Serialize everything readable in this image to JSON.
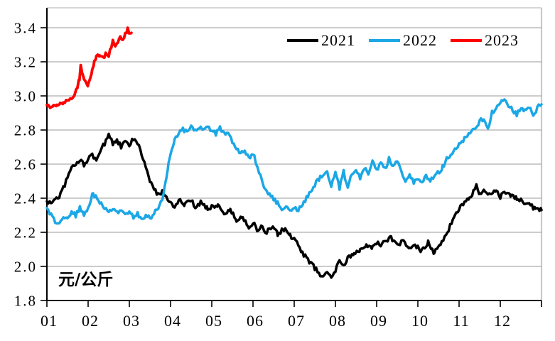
{
  "chart_data": {
    "type": "line",
    "title": "",
    "unit_label": "元/公斤",
    "xlabel": "",
    "ylabel": "元/公斤",
    "x_tick_labels": [
      "01",
      "02",
      "03",
      "04",
      "05",
      "06",
      "07",
      "08",
      "09",
      "10",
      "11",
      "12"
    ],
    "y_ticks": [
      1.8,
      2.0,
      2.2,
      2.4,
      2.6,
      2.8,
      3.0,
      3.2,
      3.4
    ],
    "ylim": [
      1.8,
      3.52
    ],
    "x_months_range": [
      1,
      13
    ],
    "grid": "horizontal",
    "legend_position": "top-right",
    "colors": {
      "axis": "#000000",
      "gridline": "#9a9a9a",
      "plot_border": "#c9c9c9",
      "series_2021": "#000000",
      "series_2022": "#1ba7e6",
      "series_2023": "#fe0000"
    },
    "series": [
      {
        "name": "2021",
        "color": "#000000",
        "width": 3.5,
        "noise": 0.013,
        "points": [
          [
            1.0,
            2.38
          ],
          [
            1.1,
            2.37
          ],
          [
            1.2,
            2.4
          ],
          [
            1.3,
            2.41
          ],
          [
            1.4,
            2.46
          ],
          [
            1.5,
            2.52
          ],
          [
            1.6,
            2.58
          ],
          [
            1.7,
            2.6
          ],
          [
            1.8,
            2.62
          ],
          [
            1.9,
            2.6
          ],
          [
            2.0,
            2.63
          ],
          [
            2.1,
            2.65
          ],
          [
            2.2,
            2.63
          ],
          [
            2.3,
            2.68
          ],
          [
            2.4,
            2.72
          ],
          [
            2.5,
            2.78
          ],
          [
            2.6,
            2.72
          ],
          [
            2.7,
            2.74
          ],
          [
            2.8,
            2.7
          ],
          [
            2.9,
            2.73
          ],
          [
            3.0,
            2.71
          ],
          [
            3.1,
            2.75
          ],
          [
            3.2,
            2.72
          ],
          [
            3.3,
            2.66
          ],
          [
            3.4,
            2.58
          ],
          [
            3.5,
            2.5
          ],
          [
            3.6,
            2.45
          ],
          [
            3.7,
            2.42
          ],
          [
            3.8,
            2.44
          ],
          [
            3.9,
            2.4
          ],
          [
            4.0,
            2.38
          ],
          [
            4.1,
            2.35
          ],
          [
            4.2,
            2.39
          ],
          [
            4.35,
            2.36
          ],
          [
            4.5,
            2.39
          ],
          [
            4.6,
            2.34
          ],
          [
            4.75,
            2.38
          ],
          [
            4.9,
            2.34
          ],
          [
            5.0,
            2.35
          ],
          [
            5.15,
            2.36
          ],
          [
            5.3,
            2.31
          ],
          [
            5.45,
            2.33
          ],
          [
            5.6,
            2.27
          ],
          [
            5.75,
            2.29
          ],
          [
            5.9,
            2.23
          ],
          [
            6.0,
            2.26
          ],
          [
            6.1,
            2.21
          ],
          [
            6.2,
            2.24
          ],
          [
            6.3,
            2.19
          ],
          [
            6.45,
            2.23
          ],
          [
            6.6,
            2.19
          ],
          [
            6.75,
            2.22
          ],
          [
            6.9,
            2.18
          ],
          [
            7.0,
            2.16
          ],
          [
            7.1,
            2.12
          ],
          [
            7.2,
            2.08
          ],
          [
            7.3,
            2.05
          ],
          [
            7.4,
            2.02
          ],
          [
            7.5,
            1.99
          ],
          [
            7.6,
            1.96
          ],
          [
            7.7,
            1.94
          ],
          [
            7.8,
            1.96
          ],
          [
            7.9,
            1.94
          ],
          [
            8.0,
            1.98
          ],
          [
            8.1,
            2.03
          ],
          [
            8.2,
            2.0
          ],
          [
            8.3,
            2.05
          ],
          [
            8.45,
            2.07
          ],
          [
            8.6,
            2.1
          ],
          [
            8.75,
            2.13
          ],
          [
            8.9,
            2.11
          ],
          [
            9.0,
            2.14
          ],
          [
            9.1,
            2.12
          ],
          [
            9.2,
            2.15
          ],
          [
            9.35,
            2.17
          ],
          [
            9.5,
            2.12
          ],
          [
            9.65,
            2.15
          ],
          [
            9.8,
            2.1
          ],
          [
            9.9,
            2.13
          ],
          [
            10.0,
            2.11
          ],
          [
            10.1,
            2.09
          ],
          [
            10.25,
            2.14
          ],
          [
            10.4,
            2.08
          ],
          [
            10.55,
            2.13
          ],
          [
            10.65,
            2.17
          ],
          [
            10.75,
            2.22
          ],
          [
            10.9,
            2.29
          ],
          [
            11.0,
            2.34
          ],
          [
            11.1,
            2.37
          ],
          [
            11.25,
            2.4
          ],
          [
            11.42,
            2.47
          ],
          [
            11.5,
            2.42
          ],
          [
            11.6,
            2.44
          ],
          [
            11.75,
            2.42
          ],
          [
            11.9,
            2.44
          ],
          [
            12.0,
            2.41
          ],
          [
            12.1,
            2.43
          ],
          [
            12.25,
            2.42
          ],
          [
            12.4,
            2.4
          ],
          [
            12.55,
            2.38
          ],
          [
            12.7,
            2.36
          ],
          [
            12.85,
            2.34
          ],
          [
            13.0,
            2.33
          ]
        ]
      },
      {
        "name": "2022",
        "color": "#1ba7e6",
        "width": 3.5,
        "noise": 0.013,
        "points": [
          [
            1.0,
            2.33
          ],
          [
            1.1,
            2.3
          ],
          [
            1.2,
            2.26
          ],
          [
            1.3,
            2.24
          ],
          [
            1.4,
            2.3
          ],
          [
            1.5,
            2.27
          ],
          [
            1.6,
            2.32
          ],
          [
            1.7,
            2.3
          ],
          [
            1.8,
            2.34
          ],
          [
            1.9,
            2.31
          ],
          [
            2.0,
            2.34
          ],
          [
            2.12,
            2.43
          ],
          [
            2.25,
            2.38
          ],
          [
            2.4,
            2.34
          ],
          [
            2.5,
            2.32
          ],
          [
            2.6,
            2.34
          ],
          [
            2.7,
            2.31
          ],
          [
            2.8,
            2.33
          ],
          [
            2.9,
            2.3
          ],
          [
            3.0,
            2.32
          ],
          [
            3.1,
            2.29
          ],
          [
            3.2,
            2.31
          ],
          [
            3.3,
            2.28
          ],
          [
            3.4,
            2.3
          ],
          [
            3.5,
            2.28
          ],
          [
            3.6,
            2.31
          ],
          [
            3.7,
            2.34
          ],
          [
            3.8,
            2.4
          ],
          [
            3.85,
            2.45
          ],
          [
            3.9,
            2.52
          ],
          [
            3.95,
            2.6
          ],
          [
            4.0,
            2.66
          ],
          [
            4.05,
            2.7
          ],
          [
            4.1,
            2.74
          ],
          [
            4.2,
            2.78
          ],
          [
            4.3,
            2.81
          ],
          [
            4.4,
            2.78
          ],
          [
            4.5,
            2.82
          ],
          [
            4.6,
            2.79
          ],
          [
            4.7,
            2.82
          ],
          [
            4.8,
            2.8
          ],
          [
            4.9,
            2.82
          ],
          [
            5.0,
            2.8
          ],
          [
            5.1,
            2.78
          ],
          [
            5.2,
            2.81
          ],
          [
            5.3,
            2.78
          ],
          [
            5.4,
            2.77
          ],
          [
            5.5,
            2.73
          ],
          [
            5.6,
            2.69
          ],
          [
            5.7,
            2.66
          ],
          [
            5.8,
            2.67
          ],
          [
            5.9,
            2.64
          ],
          [
            6.0,
            2.66
          ],
          [
            6.08,
            2.61
          ],
          [
            6.2,
            2.52
          ],
          [
            6.3,
            2.45
          ],
          [
            6.4,
            2.42
          ],
          [
            6.5,
            2.4
          ],
          [
            6.6,
            2.37
          ],
          [
            6.7,
            2.34
          ],
          [
            6.8,
            2.35
          ],
          [
            6.9,
            2.32
          ],
          [
            7.0,
            2.34
          ],
          [
            7.1,
            2.33
          ],
          [
            7.2,
            2.36
          ],
          [
            7.3,
            2.4
          ],
          [
            7.4,
            2.44
          ],
          [
            7.5,
            2.48
          ],
          [
            7.6,
            2.51
          ],
          [
            7.7,
            2.54
          ],
          [
            7.8,
            2.55
          ],
          [
            7.9,
            2.47
          ],
          [
            8.0,
            2.55
          ],
          [
            8.1,
            2.46
          ],
          [
            8.2,
            2.56
          ],
          [
            8.3,
            2.45
          ],
          [
            8.4,
            2.55
          ],
          [
            8.5,
            2.57
          ],
          [
            8.6,
            2.52
          ],
          [
            8.7,
            2.58
          ],
          [
            8.8,
            2.55
          ],
          [
            8.9,
            2.63
          ],
          [
            9.0,
            2.56
          ],
          [
            9.1,
            2.61
          ],
          [
            9.2,
            2.57
          ],
          [
            9.3,
            2.63
          ],
          [
            9.4,
            2.59
          ],
          [
            9.5,
            2.62
          ],
          [
            9.6,
            2.56
          ],
          [
            9.7,
            2.5
          ],
          [
            9.8,
            2.54
          ],
          [
            9.9,
            2.49
          ],
          [
            10.0,
            2.52
          ],
          [
            10.1,
            2.49
          ],
          [
            10.2,
            2.53
          ],
          [
            10.3,
            2.51
          ],
          [
            10.45,
            2.54
          ],
          [
            10.6,
            2.58
          ],
          [
            10.7,
            2.63
          ],
          [
            10.8,
            2.66
          ],
          [
            10.9,
            2.69
          ],
          [
            11.0,
            2.72
          ],
          [
            11.1,
            2.74
          ],
          [
            11.2,
            2.77
          ],
          [
            11.3,
            2.8
          ],
          [
            11.4,
            2.82
          ],
          [
            11.5,
            2.85
          ],
          [
            11.6,
            2.87
          ],
          [
            11.7,
            2.8
          ],
          [
            11.8,
            2.9
          ],
          [
            11.9,
            2.93
          ],
          [
            12.0,
            2.96
          ],
          [
            12.1,
            2.97
          ],
          [
            12.2,
            2.94
          ],
          [
            12.3,
            2.92
          ],
          [
            12.4,
            2.89
          ],
          [
            12.5,
            2.93
          ],
          [
            12.6,
            2.91
          ],
          [
            12.7,
            2.93
          ],
          [
            12.8,
            2.89
          ],
          [
            12.9,
            2.93
          ],
          [
            13.0,
            2.95
          ]
        ]
      },
      {
        "name": "2023",
        "color": "#fe0000",
        "width": 3.8,
        "noise": 0.01,
        "points": [
          [
            1.0,
            2.95
          ],
          [
            1.08,
            2.93
          ],
          [
            1.16,
            2.95
          ],
          [
            1.24,
            2.94
          ],
          [
            1.32,
            2.95
          ],
          [
            1.4,
            2.96
          ],
          [
            1.5,
            2.97
          ],
          [
            1.6,
            2.99
          ],
          [
            1.68,
            3.01
          ],
          [
            1.74,
            3.05
          ],
          [
            1.79,
            3.1
          ],
          [
            1.82,
            3.18
          ],
          [
            1.86,
            3.13
          ],
          [
            1.9,
            3.09
          ],
          [
            1.96,
            3.07
          ],
          [
            2.0,
            3.06
          ],
          [
            2.05,
            3.1
          ],
          [
            2.1,
            3.15
          ],
          [
            2.15,
            3.2
          ],
          [
            2.2,
            3.23
          ],
          [
            2.28,
            3.24
          ],
          [
            2.36,
            3.22
          ],
          [
            2.44,
            3.25
          ],
          [
            2.5,
            3.24
          ],
          [
            2.56,
            3.29
          ],
          [
            2.6,
            3.33
          ],
          [
            2.66,
            3.29
          ],
          [
            2.72,
            3.31
          ],
          [
            2.78,
            3.35
          ],
          [
            2.84,
            3.33
          ],
          [
            2.9,
            3.36
          ],
          [
            2.96,
            3.39
          ],
          [
            3.0,
            3.36
          ],
          [
            3.05,
            3.37
          ]
        ]
      }
    ]
  }
}
